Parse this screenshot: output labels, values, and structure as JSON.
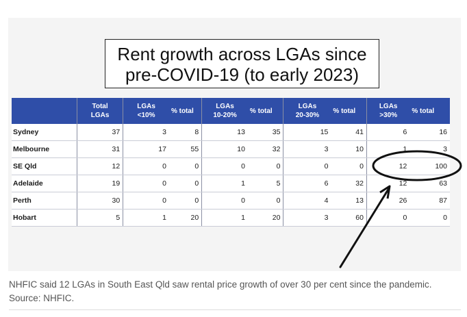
{
  "figure": {
    "title_line1": "Rent growth across LGAs since",
    "title_line2": "pre-COVID-19 (to early 2023)",
    "header_color": "#2f4ea8"
  },
  "table": {
    "headers": [
      {
        "line1": "",
        "line2": ""
      },
      {
        "line1": "Total",
        "line2": "LGAs"
      },
      {
        "line1": "LGAs",
        "line2": "<10%"
      },
      {
        "line1": "% total",
        "line2": ""
      },
      {
        "line1": "LGAs",
        "line2": "10-20%"
      },
      {
        "line1": "% total",
        "line2": ""
      },
      {
        "line1": "LGAs",
        "line2": "20-30%"
      },
      {
        "line1": "% total",
        "line2": ""
      },
      {
        "line1": "LGAs",
        "line2": ">30%"
      },
      {
        "line1": "% total",
        "line2": ""
      }
    ],
    "rows": [
      [
        "Sydney",
        "37",
        "3",
        "8",
        "13",
        "35",
        "15",
        "41",
        "6",
        "16"
      ],
      [
        "Melbourne",
        "31",
        "17",
        "55",
        "10",
        "32",
        "3",
        "10",
        "1",
        "3"
      ],
      [
        "SE Qld",
        "12",
        "0",
        "0",
        "0",
        "0",
        "0",
        "0",
        "12",
        "100"
      ],
      [
        "Adelaide",
        "19",
        "0",
        "0",
        "1",
        "5",
        "6",
        "32",
        "12",
        "63"
      ],
      [
        "Perth",
        "30",
        "0",
        "0",
        "0",
        "0",
        "4",
        "13",
        "26",
        "87"
      ],
      [
        "Hobart",
        "5",
        "1",
        "20",
        "1",
        "20",
        "3",
        "60",
        "0",
        "0"
      ]
    ]
  },
  "annotation": {
    "circled_row": "SE Qld",
    "ink_color": "#111111"
  },
  "caption": {
    "line1": "NHFIC said 12 LGAs in South East Qld saw rental price growth of over 30 per cent since the pandemic.",
    "line2": "Source: NHFIC."
  }
}
